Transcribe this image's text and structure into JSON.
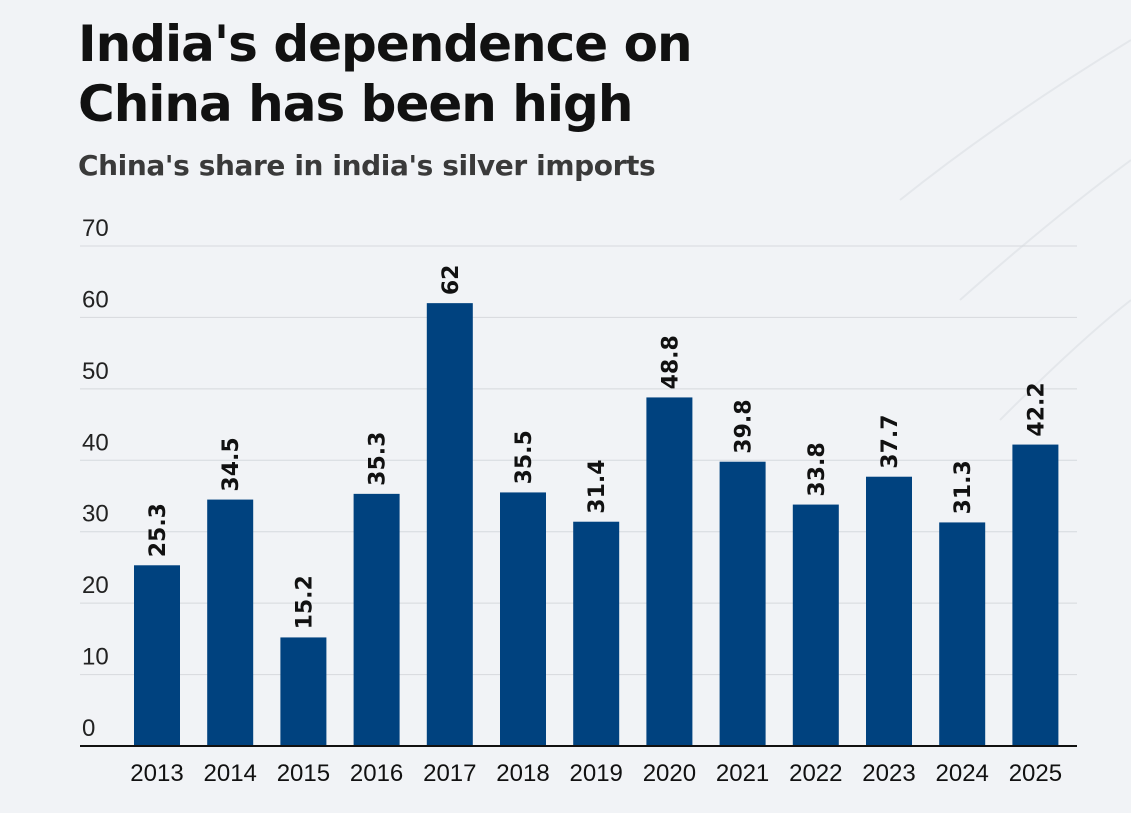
{
  "header": {
    "title_line1": "India's dependence on",
    "title_line2": "China has been high",
    "subtitle": "China's share in india's silver imports"
  },
  "colors": {
    "bar": "#00427f",
    "grid": "#d6d9dd",
    "axis": "#111111",
    "background": "#f1f3f6"
  },
  "chart_data": {
    "type": "bar",
    "title": "India's dependence on China has been high",
    "subtitle": "China's share in india's silver imports",
    "categories": [
      "2013",
      "2014",
      "2015",
      "2016",
      "2017",
      "2018",
      "2019",
      "2020",
      "2021",
      "2022",
      "2023",
      "2024",
      "2025"
    ],
    "values": [
      25.3,
      34.5,
      15.2,
      35.3,
      62,
      35.5,
      31.4,
      48.8,
      39.8,
      33.8,
      37.7,
      31.3,
      42.2
    ],
    "data_labels": [
      "25.3",
      "34.5",
      "15.2",
      "35.3",
      "62",
      "35.5",
      "31.4",
      "48.8",
      "39.8",
      "33.8",
      "37.7",
      "31.3",
      "42.2"
    ],
    "ylim": [
      0,
      70
    ],
    "yticks": [
      "0",
      "10",
      "20",
      "30",
      "40",
      "50",
      "60",
      "70"
    ],
    "xlabel": "",
    "ylabel": "",
    "grid": true
  }
}
